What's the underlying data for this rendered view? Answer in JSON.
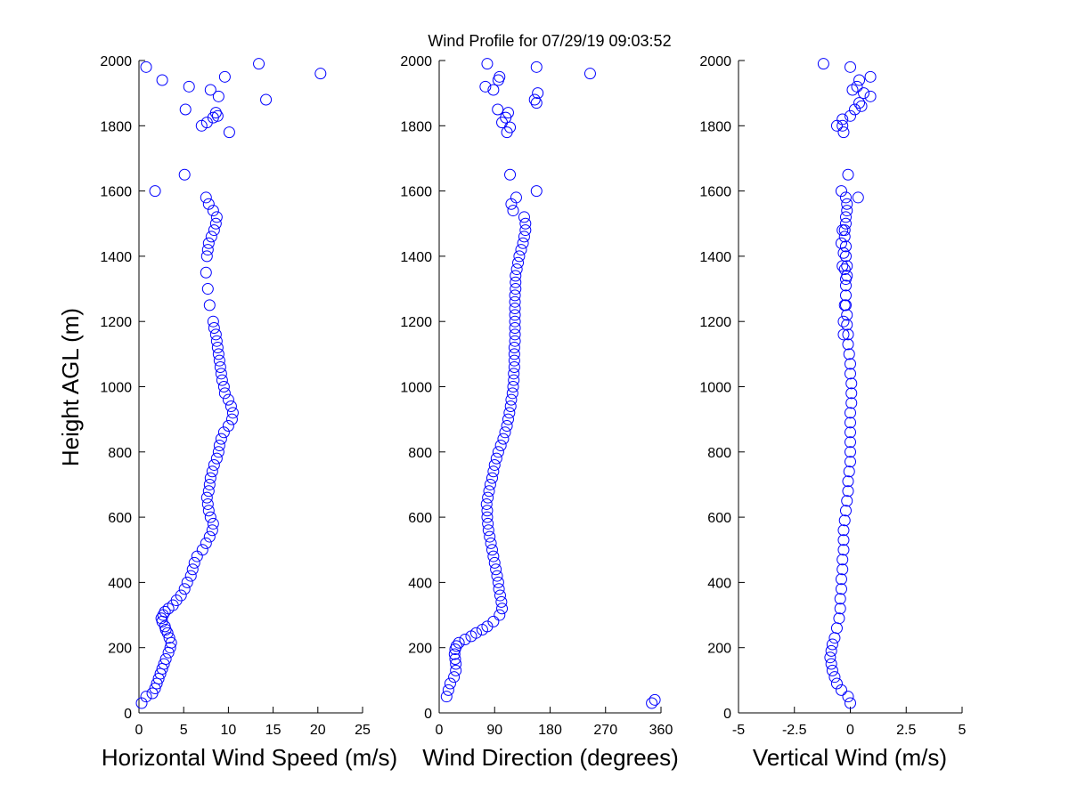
{
  "figure_title": "Wind Profile for  07/29/19 09:03:52",
  "marker_color": "#0000ff",
  "chart_data": [
    {
      "type": "scatter",
      "xlabel": "Horizontal Wind Speed (m/s)",
      "ylabel": "Height AGL (m)",
      "xlim": [
        0,
        25
      ],
      "ylim": [
        0,
        2000
      ],
      "xticks": [
        0,
        5,
        10,
        15,
        20,
        25
      ],
      "xtick_labels": [
        "0",
        "5",
        "10",
        "15",
        "20",
        "25"
      ],
      "yticks": [
        0,
        200,
        400,
        600,
        800,
        1000,
        1200,
        1400,
        1600,
        1800,
        2000
      ],
      "ytick_labels": [
        "0",
        "200",
        "400",
        "600",
        "800",
        "1000",
        "1200",
        "1400",
        "1600",
        "1800",
        "2000"
      ],
      "grid": false,
      "marker": "open-circle",
      "series": [
        {
          "x": [
            0.3,
            0.8,
            1.5,
            1.8,
            2.0,
            2.2,
            2.4,
            2.6,
            2.8,
            3.0,
            3.3,
            3.5,
            3.6,
            3.4,
            3.2,
            3.0,
            2.9,
            2.6,
            2.5,
            2.7,
            2.9,
            3.3,
            3.8,
            4.2,
            4.7,
            5.1,
            5.4,
            5.8,
            6.0,
            6.2,
            6.5,
            7.1,
            7.5,
            7.9,
            8.2,
            8.3,
            8.0,
            7.8,
            7.7,
            7.6,
            7.8,
            7.9,
            8.0,
            8.2,
            8.4,
            8.7,
            8.9,
            9.0,
            9.2,
            9.5,
            10.0,
            10.4,
            10.5,
            10.3,
            10.0,
            9.6,
            9.5,
            9.3,
            9.2,
            9.1,
            9.0,
            8.9,
            8.8,
            8.7,
            8.6,
            8.4,
            8.3,
            7.9,
            7.7,
            7.5,
            7.6,
            7.7,
            7.8,
            8.1,
            8.4,
            8.6,
            8.7,
            8.3,
            7.8,
            7.5
          ],
          "y": [
            30,
            50,
            60,
            75,
            90,
            105,
            120,
            135,
            150,
            165,
            185,
            200,
            215,
            230,
            245,
            255,
            265,
            280,
            290,
            300,
            310,
            320,
            330,
            345,
            360,
            380,
            400,
            420,
            440,
            460,
            480,
            500,
            520,
            540,
            560,
            580,
            600,
            620,
            640,
            660,
            680,
            700,
            720,
            740,
            760,
            780,
            800,
            820,
            840,
            860,
            880,
            900,
            920,
            940,
            960,
            980,
            1000,
            1020,
            1040,
            1060,
            1080,
            1100,
            1120,
            1140,
            1160,
            1180,
            1200,
            1250,
            1300,
            1350,
            1400,
            1420,
            1440,
            1460,
            1480,
            1500,
            1520,
            1540,
            1560,
            1580
          ]
        },
        {
          "x": [
            1.8,
            5.1,
            7.0,
            10.1,
            7.6,
            8.6,
            8.3,
            8.8,
            5.2,
            14.2,
            8.9,
            5.6,
            8.0,
            9.6,
            2.6,
            0.8,
            20.3,
            13.4
          ],
          "y": [
            1600,
            1650,
            1800,
            1780,
            1810,
            1840,
            1825,
            1830,
            1850,
            1880,
            1890,
            1920,
            1910,
            1950,
            1940,
            1980,
            1960,
            1990
          ]
        }
      ]
    },
    {
      "type": "scatter",
      "xlabel": "Wind Direction (degrees)",
      "ylabel": "",
      "xlim": [
        0,
        360
      ],
      "ylim": [
        0,
        2000
      ],
      "xticks": [
        0,
        90,
        180,
        270,
        360
      ],
      "xtick_labels": [
        "0",
        "90",
        "180",
        "270",
        "360"
      ],
      "yticks": [
        0,
        200,
        400,
        600,
        800,
        1000,
        1200,
        1400,
        1600,
        1800,
        2000
      ],
      "ytick_labels": [
        "0",
        "200",
        "400",
        "600",
        "800",
        "1000",
        "1200",
        "1400",
        "1600",
        "1800",
        "2000"
      ],
      "grid": false,
      "marker": "open-circle",
      "series": [
        {
          "x": [
            12,
            15,
            18,
            24,
            27,
            27,
            26,
            25,
            26,
            28,
            32,
            42,
            52,
            60,
            70,
            78,
            88,
            98,
            102,
            101,
            99,
            97,
            96,
            94,
            92,
            90,
            88,
            86,
            84,
            82,
            80,
            79,
            78,
            78,
            77,
            79,
            81,
            83,
            86,
            88,
            90,
            93,
            96,
            100,
            104,
            107,
            110,
            112,
            114,
            116,
            117,
            119,
            120,
            121,
            121,
            122,
            122,
            122,
            122,
            123,
            123,
            123,
            123,
            123,
            123,
            123,
            123,
            124,
            124,
            124,
            126,
            128,
            130,
            133,
            136,
            138,
            140,
            140,
            138,
            120,
            117
          ],
          "y": [
            50,
            70,
            90,
            110,
            130,
            150,
            165,
            180,
            195,
            205,
            215,
            225,
            235,
            245,
            255,
            265,
            280,
            300,
            320,
            340,
            360,
            380,
            400,
            420,
            440,
            460,
            480,
            500,
            520,
            540,
            560,
            580,
            600,
            620,
            640,
            660,
            680,
            700,
            720,
            740,
            760,
            780,
            800,
            820,
            840,
            860,
            880,
            900,
            920,
            940,
            960,
            980,
            1000,
            1020,
            1040,
            1060,
            1080,
            1100,
            1120,
            1140,
            1160,
            1180,
            1200,
            1220,
            1240,
            1260,
            1280,
            1300,
            1320,
            1340,
            1360,
            1380,
            1400,
            1420,
            1440,
            1460,
            1480,
            1500,
            1520,
            1540,
            1560
          ]
        },
        {
          "x": [
            158,
            115,
            110,
            115,
            102,
            108,
            112,
            95,
            155,
            160,
            158,
            75,
            88,
            96,
            98,
            78,
            158,
            245,
            345,
            350,
            125
          ],
          "y": [
            1600,
            1650,
            1780,
            1795,
            1810,
            1825,
            1840,
            1850,
            1880,
            1900,
            1870,
            1920,
            1910,
            1940,
            1950,
            1990,
            1980,
            1960,
            30,
            40,
            1580
          ]
        }
      ]
    },
    {
      "type": "scatter",
      "xlabel": "Vertical Wind (m/s)",
      "ylabel": "",
      "xlim": [
        -5,
        5
      ],
      "ylim": [
        0,
        2000
      ],
      "xticks": [
        -5,
        -2.5,
        0,
        2.5,
        5
      ],
      "xtick_labels": [
        "-5",
        "-2.5",
        "0",
        "2.5",
        "5"
      ],
      "yticks": [
        0,
        200,
        400,
        600,
        800,
        1000,
        1200,
        1400,
        1600,
        1800,
        2000
      ],
      "ytick_labels": [
        "0",
        "200",
        "400",
        "600",
        "800",
        "1000",
        "1200",
        "1400",
        "1600",
        "1800",
        "2000"
      ],
      "grid": false,
      "marker": "open-circle",
      "series": [
        {
          "x": [
            0.0,
            -0.1,
            -0.4,
            -0.6,
            -0.7,
            -0.8,
            -0.85,
            -0.9,
            -0.85,
            -0.8,
            -0.7,
            -0.6,
            -0.5,
            -0.45,
            -0.45,
            -0.4,
            -0.4,
            -0.35,
            -0.35,
            -0.3,
            -0.3,
            -0.3,
            -0.25,
            -0.2,
            -0.15,
            -0.1,
            -0.1,
            -0.05,
            0.0,
            0.0,
            0.0,
            0.0,
            0.0,
            0.0,
            0.05,
            0.05,
            0.05,
            0.0,
            0.0,
            -0.05,
            -0.1,
            -0.1,
            -0.15,
            -0.15,
            -0.2,
            -0.2,
            -0.2,
            -0.15,
            -0.15,
            -0.2,
            -0.2,
            -0.25,
            -0.25,
            -0.2,
            -0.2,
            -0.15,
            -0.15,
            -0.2,
            -0.25,
            -0.3,
            -0.35,
            -0.4,
            -0.35,
            -0.25,
            -0.3,
            -0.3,
            -0.2
          ],
          "y": [
            30,
            50,
            70,
            90,
            110,
            130,
            150,
            170,
            190,
            210,
            230,
            260,
            290,
            320,
            350,
            380,
            410,
            440,
            470,
            500,
            530,
            560,
            590,
            620,
            650,
            680,
            710,
            740,
            770,
            800,
            830,
            860,
            890,
            920,
            950,
            980,
            1010,
            1040,
            1070,
            1100,
            1130,
            1160,
            1190,
            1220,
            1250,
            1280,
            1310,
            1340,
            1370,
            1400,
            1430,
            1460,
            1480,
            1500,
            1520,
            1540,
            1560,
            1330,
            1360,
            1410,
            1480,
            1440,
            1370,
            1250,
            1200,
            1160,
            1580
          ]
        },
        {
          "x": [
            -0.4,
            -0.1,
            -0.3,
            -0.35,
            -0.6,
            -0.35,
            0.0,
            0.2,
            0.4,
            0.9,
            0.6,
            0.1,
            0.3,
            0.9,
            0.4,
            -1.2,
            0.0,
            0.35,
            0.5
          ],
          "y": [
            1600,
            1650,
            1780,
            1800,
            1800,
            1820,
            1830,
            1850,
            1870,
            1890,
            1900,
            1910,
            1920,
            1950,
            1940,
            1990,
            1980,
            1580,
            1860
          ]
        }
      ]
    }
  ]
}
